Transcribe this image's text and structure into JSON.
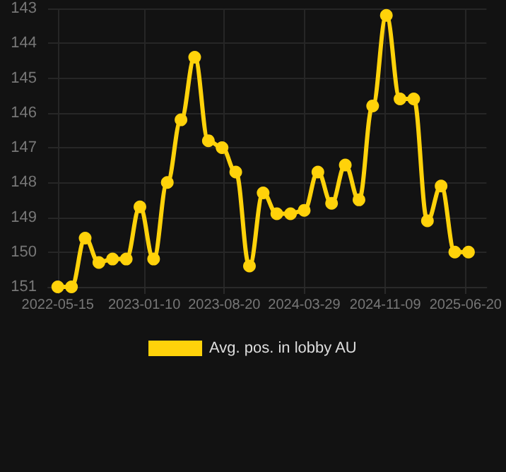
{
  "chart_data": {
    "type": "line",
    "x": [
      "2022-05-15",
      "2022-06-22",
      "2022-07-30",
      "2022-09-06",
      "2022-10-14",
      "2022-11-21",
      "2022-12-29",
      "2023-02-05",
      "2023-03-15",
      "2023-04-22",
      "2023-05-30",
      "2023-07-07",
      "2023-08-14",
      "2023-09-21",
      "2023-10-29",
      "2023-12-06",
      "2024-01-13",
      "2024-02-20",
      "2024-03-29",
      "2024-05-06",
      "2024-06-13",
      "2024-07-21",
      "2024-08-28",
      "2024-10-05",
      "2024-11-12",
      "2024-12-20",
      "2025-01-27",
      "2025-03-06",
      "2025-04-13",
      "2025-05-21",
      "2025-06-28"
    ],
    "series": [
      {
        "name": "Avg. pos. in lobby AU",
        "color": "#ffd20a",
        "values": [
          151.0,
          151.0,
          149.6,
          150.3,
          150.2,
          150.2,
          148.7,
          150.2,
          148.0,
          146.2,
          144.4,
          146.8,
          147.0,
          147.7,
          150.4,
          148.3,
          148.9,
          148.9,
          148.8,
          147.7,
          148.6,
          147.5,
          148.5,
          145.8,
          143.2,
          145.6,
          145.6,
          149.1,
          148.1,
          150.0,
          150.0
        ]
      }
    ],
    "xlim": [
      "2022-04-18",
      "2025-08-17"
    ],
    "xticks": [
      "2022-05-15",
      "2023-01-10",
      "2023-08-20",
      "2024-03-29",
      "2024-11-09",
      "2025-06-20"
    ],
    "ylim": [
      151,
      143
    ],
    "yticks": [
      143,
      144,
      145,
      146,
      147,
      148,
      149,
      150,
      151
    ],
    "grid": true,
    "legend": "bottom",
    "marker": "circle",
    "line_style": "solid"
  }
}
